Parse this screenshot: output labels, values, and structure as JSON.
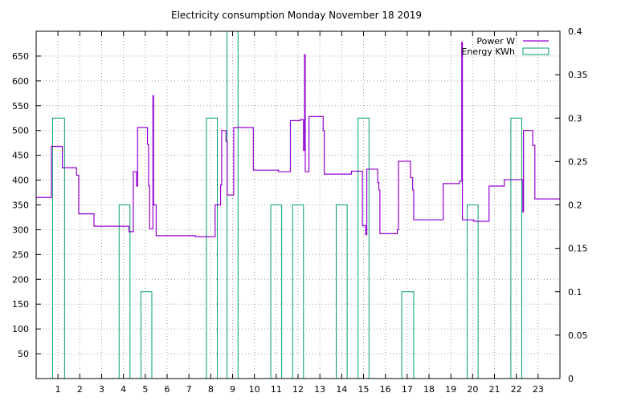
{
  "chart_data": {
    "type": "line",
    "title": "Electricity consumption Monday November 18 2019",
    "xlabel": "",
    "ylabel": "",
    "y2label": "",
    "xlim": [
      0,
      24
    ],
    "ylim": [
      0,
      700
    ],
    "y2lim": [
      0,
      0.4
    ],
    "grid": true,
    "legend_position": "top-right",
    "x_ticks": [
      1,
      2,
      3,
      4,
      5,
      6,
      7,
      8,
      9,
      10,
      11,
      12,
      13,
      14,
      15,
      16,
      17,
      18,
      19,
      20,
      21,
      22,
      23
    ],
    "y_ticks": [
      50,
      100,
      150,
      200,
      250,
      300,
      350,
      400,
      450,
      500,
      550,
      600,
      650
    ],
    "y2_ticks": [
      "0",
      "0.05",
      "0.1",
      "0.15",
      "0.2",
      "0.25",
      "0.3",
      "0.35",
      "0.4"
    ],
    "series": [
      {
        "name": "Power W",
        "axis": "left",
        "color": "#9400d3",
        "style": "steps",
        "points": [
          [
            0.0,
            365
          ],
          [
            0.7,
            365
          ],
          [
            0.7,
            468
          ],
          [
            1.2,
            468
          ],
          [
            1.2,
            425
          ],
          [
            1.85,
            425
          ],
          [
            1.85,
            410
          ],
          [
            1.95,
            410
          ],
          [
            1.95,
            332
          ],
          [
            2.65,
            332
          ],
          [
            2.65,
            307
          ],
          [
            4.25,
            307
          ],
          [
            4.25,
            296
          ],
          [
            4.45,
            296
          ],
          [
            4.45,
            417
          ],
          [
            4.6,
            417
          ],
          [
            4.6,
            388
          ],
          [
            4.65,
            388
          ],
          [
            4.65,
            506
          ],
          [
            5.1,
            506
          ],
          [
            5.1,
            472
          ],
          [
            5.15,
            472
          ],
          [
            5.15,
            388
          ],
          [
            5.2,
            388
          ],
          [
            5.2,
            302
          ],
          [
            5.35,
            302
          ],
          [
            5.35,
            570
          ],
          [
            5.38,
            570
          ],
          [
            5.38,
            350
          ],
          [
            5.5,
            350
          ],
          [
            5.5,
            288
          ],
          [
            7.3,
            288
          ],
          [
            7.3,
            286
          ],
          [
            8.2,
            286
          ],
          [
            8.2,
            350
          ],
          [
            8.45,
            350
          ],
          [
            8.45,
            390
          ],
          [
            8.5,
            390
          ],
          [
            8.5,
            500
          ],
          [
            8.7,
            500
          ],
          [
            8.7,
            478
          ],
          [
            8.75,
            478
          ],
          [
            8.75,
            370
          ],
          [
            9.05,
            370
          ],
          [
            9.05,
            506
          ],
          [
            9.95,
            506
          ],
          [
            9.95,
            420
          ],
          [
            11.1,
            420
          ],
          [
            11.1,
            417
          ],
          [
            11.65,
            417
          ],
          [
            11.65,
            520
          ],
          [
            12.1,
            520
          ],
          [
            12.1,
            522
          ],
          [
            12.25,
            522
          ],
          [
            12.25,
            460
          ],
          [
            12.3,
            460
          ],
          [
            12.3,
            653
          ],
          [
            12.33,
            653
          ],
          [
            12.33,
            417
          ],
          [
            12.5,
            417
          ],
          [
            12.5,
            528
          ],
          [
            13.15,
            528
          ],
          [
            13.15,
            500
          ],
          [
            13.2,
            500
          ],
          [
            13.2,
            412
          ],
          [
            14.45,
            412
          ],
          [
            14.45,
            418
          ],
          [
            14.95,
            418
          ],
          [
            14.95,
            308
          ],
          [
            15.1,
            308
          ],
          [
            15.1,
            290
          ],
          [
            15.15,
            290
          ],
          [
            15.15,
            422
          ],
          [
            15.65,
            422
          ],
          [
            15.65,
            395
          ],
          [
            15.7,
            395
          ],
          [
            15.7,
            380
          ],
          [
            15.75,
            380
          ],
          [
            15.75,
            292
          ],
          [
            16.55,
            292
          ],
          [
            16.55,
            300
          ],
          [
            16.6,
            300
          ],
          [
            16.6,
            438
          ],
          [
            17.15,
            438
          ],
          [
            17.15,
            405
          ],
          [
            17.25,
            405
          ],
          [
            17.25,
            380
          ],
          [
            17.3,
            380
          ],
          [
            17.3,
            320
          ],
          [
            18.65,
            320
          ],
          [
            18.65,
            393
          ],
          [
            19.4,
            393
          ],
          [
            19.4,
            398
          ],
          [
            19.5,
            398
          ],
          [
            19.5,
            678
          ],
          [
            19.53,
            678
          ],
          [
            19.53,
            320
          ],
          [
            20.05,
            320
          ],
          [
            20.05,
            317
          ],
          [
            20.75,
            317
          ],
          [
            20.75,
            388
          ],
          [
            21.45,
            388
          ],
          [
            21.45,
            401
          ],
          [
            22.3,
            401
          ],
          [
            22.3,
            336
          ],
          [
            22.33,
            336
          ],
          [
            22.33,
            500
          ],
          [
            22.75,
            500
          ],
          [
            22.75,
            470
          ],
          [
            22.85,
            470
          ],
          [
            22.85,
            362
          ],
          [
            24.0,
            362
          ]
        ]
      },
      {
        "name": "Energy KWh",
        "axis": "right",
        "color": "#009e73",
        "style": "bars",
        "bars": [
          {
            "x0": 0.75,
            "x1": 1.3,
            "value": 0.3
          },
          {
            "x0": 3.8,
            "x1": 4.3,
            "value": 0.2
          },
          {
            "x0": 4.8,
            "x1": 5.3,
            "value": 0.1
          },
          {
            "x0": 7.8,
            "x1": 8.3,
            "value": 0.3
          },
          {
            "x0": 8.75,
            "x1": 9.25,
            "value": 0.4
          },
          {
            "x0": 10.75,
            "x1": 11.25,
            "value": 0.2
          },
          {
            "x0": 11.75,
            "x1": 12.25,
            "value": 0.2
          },
          {
            "x0": 13.75,
            "x1": 14.25,
            "value": 0.2
          },
          {
            "x0": 14.75,
            "x1": 15.25,
            "value": 0.3
          },
          {
            "x0": 16.75,
            "x1": 17.3,
            "value": 0.1
          },
          {
            "x0": 19.75,
            "x1": 20.25,
            "value": 0.2
          },
          {
            "x0": 21.75,
            "x1": 22.25,
            "value": 0.3
          }
        ]
      }
    ]
  }
}
